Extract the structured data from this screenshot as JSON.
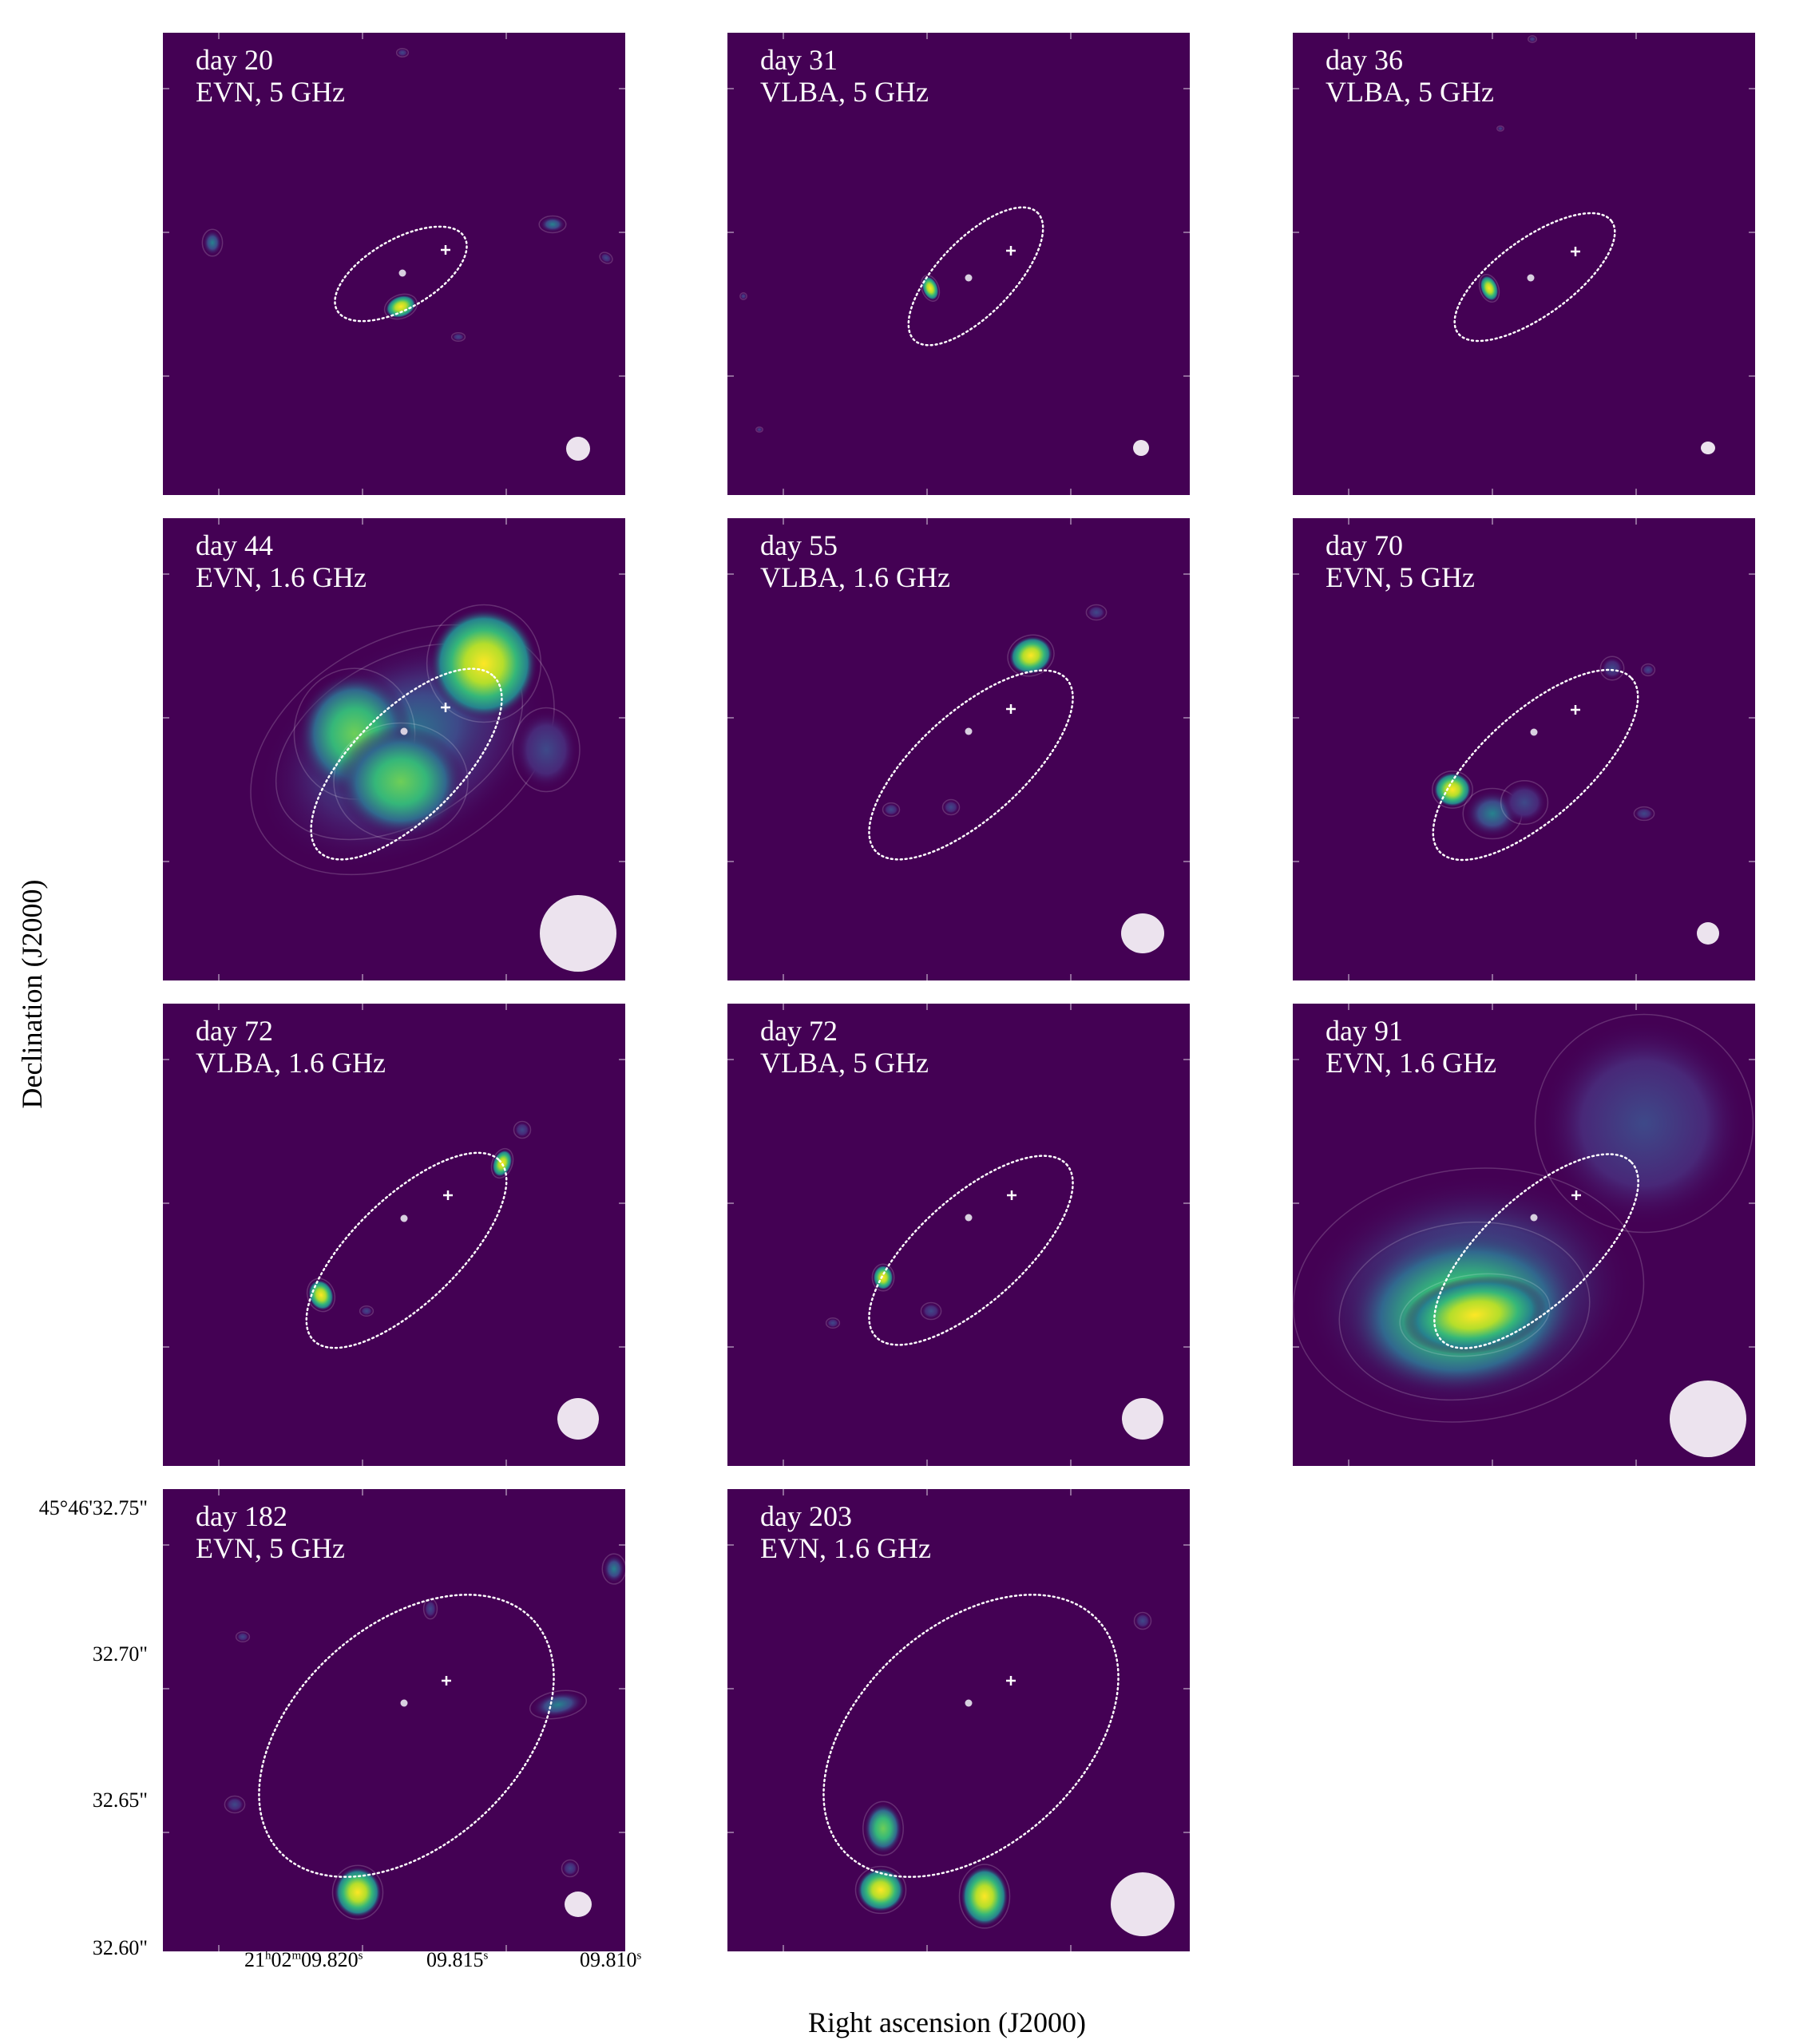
{
  "panels": [
    {
      "day": "day 20",
      "instrument": "EVN, 5 GHz"
    },
    {
      "day": "day 31",
      "instrument": "VLBA, 5 GHz"
    },
    {
      "day": "day 36",
      "instrument": "VLBA, 5 GHz"
    },
    {
      "day": "day 44",
      "instrument": "EVN, 1.6 GHz"
    },
    {
      "day": "day 55",
      "instrument": "VLBA, 1.6 GHz"
    },
    {
      "day": "day 70",
      "instrument": "EVN, 5 GHz"
    },
    {
      "day": "day 72",
      "instrument": "VLBA, 1.6 GHz"
    },
    {
      "day": "day 72",
      "instrument": "VLBA, 5 GHz"
    },
    {
      "day": "day 91",
      "instrument": "EVN, 1.6 GHz"
    },
    {
      "day": "day 182",
      "instrument": "EVN, 5 GHz"
    },
    {
      "day": "day 203",
      "instrument": "EVN, 1.6 GHz"
    }
  ],
  "axes": {
    "ylabel": "Declination (J2000)",
    "xlabel": "Right ascension (J2000)",
    "yticks": [
      "45°46'32.75\"",
      "32.70\"",
      "32.65\"",
      "32.60\""
    ],
    "xticks": [
      {
        "main": "21",
        "h": "h",
        "m_main": "02",
        "m": "m",
        "s_main": "09.820",
        "s": "s"
      },
      {
        "main": "09.815",
        "s": "s"
      },
      {
        "main": "09.810",
        "s": "s"
      }
    ]
  },
  "colors": {
    "background": "#440154",
    "colormap": "viridis",
    "overlay": "#ffffff",
    "beam": "#ece3ee"
  }
}
